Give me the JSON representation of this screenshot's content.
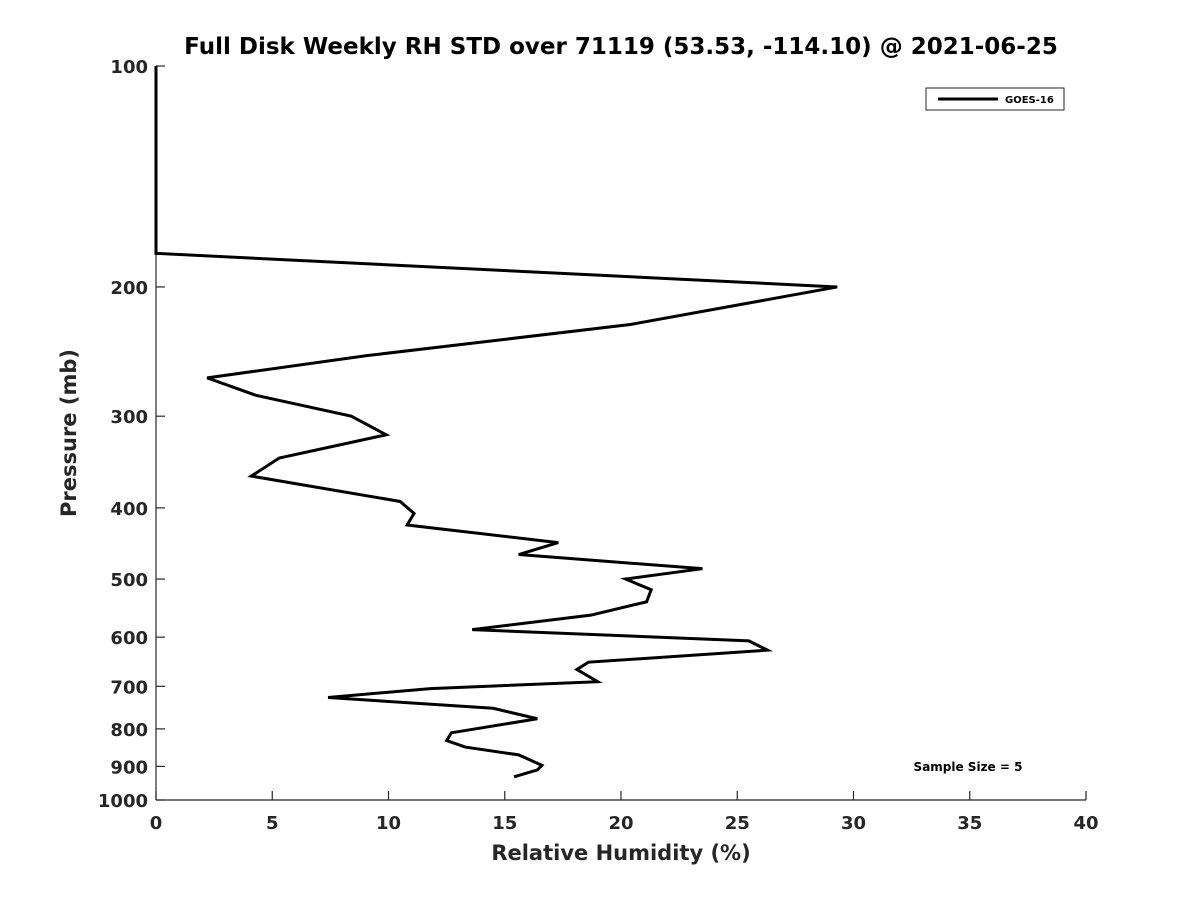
{
  "chart_data": {
    "type": "line",
    "title": "Full Disk Weekly RH STD over 71119 (53.53, -114.10) @ 2021-06-25",
    "xlabel": "Relative Humidity (%)",
    "ylabel": "Pressure (mb)",
    "xlim": [
      0,
      40
    ],
    "ylim": [
      100,
      1000
    ],
    "y_scale": "log",
    "y_inverted": true,
    "grid": false,
    "legend_position": "top-right",
    "x_ticks": [
      {
        "value": 0,
        "label": "0"
      },
      {
        "value": 5,
        "label": "5"
      },
      {
        "value": 10,
        "label": "10"
      },
      {
        "value": 15,
        "label": "15"
      },
      {
        "value": 20,
        "label": "20"
      },
      {
        "value": 25,
        "label": "25"
      },
      {
        "value": 30,
        "label": "30"
      },
      {
        "value": 35,
        "label": "35"
      },
      {
        "value": 40,
        "label": "40"
      }
    ],
    "y_ticks": [
      {
        "value": 100,
        "label": "100"
      },
      {
        "value": 200,
        "label": "200"
      },
      {
        "value": 300,
        "label": "300"
      },
      {
        "value": 400,
        "label": "400"
      },
      {
        "value": 500,
        "label": "500"
      },
      {
        "value": 600,
        "label": "600"
      },
      {
        "value": 700,
        "label": "700"
      },
      {
        "value": 800,
        "label": "800"
      },
      {
        "value": 900,
        "label": "900"
      },
      {
        "value": 1000,
        "label": "1000"
      }
    ],
    "series": [
      {
        "name": "GOES-16",
        "color": "#000000",
        "points": [
          {
            "x": 0.0,
            "p": 100
          },
          {
            "x": 0.0,
            "p": 150
          },
          {
            "x": 0.0,
            "p": 180
          },
          {
            "x": 29.3,
            "p": 200
          },
          {
            "x": 20.4,
            "p": 225
          },
          {
            "x": 9.1,
            "p": 248
          },
          {
            "x": 2.2,
            "p": 266
          },
          {
            "x": 4.3,
            "p": 281
          },
          {
            "x": 8.4,
            "p": 300
          },
          {
            "x": 9.9,
            "p": 318
          },
          {
            "x": 5.3,
            "p": 342
          },
          {
            "x": 4.1,
            "p": 362
          },
          {
            "x": 10.5,
            "p": 392
          },
          {
            "x": 11.1,
            "p": 407
          },
          {
            "x": 10.8,
            "p": 422
          },
          {
            "x": 17.3,
            "p": 446
          },
          {
            "x": 15.6,
            "p": 463
          },
          {
            "x": 23.5,
            "p": 484
          },
          {
            "x": 20.2,
            "p": 500
          },
          {
            "x": 21.3,
            "p": 517
          },
          {
            "x": 21.1,
            "p": 537
          },
          {
            "x": 18.7,
            "p": 560
          },
          {
            "x": 13.6,
            "p": 586
          },
          {
            "x": 25.5,
            "p": 607
          },
          {
            "x": 26.3,
            "p": 625
          },
          {
            "x": 18.6,
            "p": 649
          },
          {
            "x": 18.1,
            "p": 664
          },
          {
            "x": 19.0,
            "p": 690
          },
          {
            "x": 11.8,
            "p": 705
          },
          {
            "x": 7.4,
            "p": 725
          },
          {
            "x": 14.5,
            "p": 750
          },
          {
            "x": 16.4,
            "p": 775
          },
          {
            "x": 12.7,
            "p": 810
          },
          {
            "x": 12.5,
            "p": 830
          },
          {
            "x": 13.3,
            "p": 847
          },
          {
            "x": 15.6,
            "p": 868
          },
          {
            "x": 16.6,
            "p": 897
          },
          {
            "x": 16.4,
            "p": 910
          },
          {
            "x": 15.4,
            "p": 930
          }
        ]
      }
    ],
    "annotations": [
      {
        "text": "Sample Size = 5",
        "position": "bottom-right"
      }
    ]
  }
}
